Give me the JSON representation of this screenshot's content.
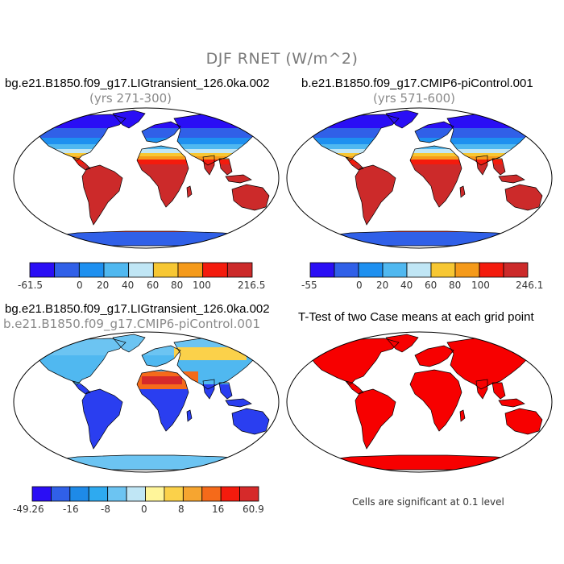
{
  "figure": {
    "title": "DJF RNET (W/m^2)"
  },
  "panels": [
    {
      "id": "top-left",
      "title": "bg.e21.B1850.f09_g17.LIGtransient_126.0ka.002",
      "subtitle": "(yrs 271-300)",
      "colorbar": {
        "labels": [
          "-61.5",
          "0",
          "20",
          "40",
          "60",
          "80",
          "100",
          "216.5"
        ],
        "colors": [
          "#2a0ef5",
          "#3060e8",
          "#1e90f0",
          "#50b8f0",
          "#c0e6f5",
          "#f7c733",
          "#f59a1a",
          "#f41b0d",
          "#cc2a2a"
        ]
      }
    },
    {
      "id": "top-right",
      "title": "b.e21.B1850.f09_g17.CMIP6-piControl.001",
      "subtitle": "(yrs 571-600)",
      "colorbar": {
        "labels": [
          "-55",
          "0",
          "20",
          "40",
          "60",
          "80",
          "100",
          "246.1"
        ],
        "colors": [
          "#2a0ef5",
          "#3060e8",
          "#1e90f0",
          "#50b8f0",
          "#c0e6f5",
          "#f7c733",
          "#f59a1a",
          "#f41b0d",
          "#cc2a2a"
        ]
      }
    },
    {
      "id": "bottom-left",
      "title": "bg.e21.B1850.f09_g17.LIGtransient_126.0ka.002",
      "subtitle": "b.e21.B1850.f09_g17.CMIP6-piControl.001",
      "colorbar": {
        "labels": [
          "-49.26",
          "-16",
          "-8",
          "0",
          "8",
          "16",
          "60.9"
        ],
        "colors": [
          "#2a0ef5",
          "#3060e8",
          "#1e8ae8",
          "#2eaaf0",
          "#6cc4f2",
          "#c0e6f5",
          "#fff59a",
          "#fbd14a",
          "#f6a530",
          "#f56a1a",
          "#f41b0d",
          "#d62a2a"
        ]
      }
    },
    {
      "id": "bottom-right",
      "title": "T-Test of two Case means at each grid point",
      "note": "Cells are significant at 0.1 level"
    }
  ],
  "map_colors": {
    "ocean": "#ffffff",
    "outline": "#000000",
    "significant": "#f70000"
  }
}
